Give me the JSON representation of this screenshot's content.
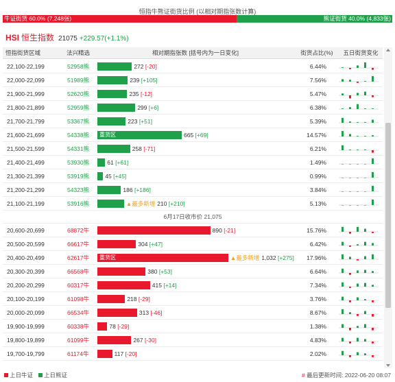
{
  "header": {
    "title": "恒指牛熊证街货比例 (以相对期指张数计算)",
    "bull_label": "牛证街货 60.0% (7,248张)",
    "bear_label": "熊证街货 40.0% (4,833张)",
    "bull_pct": 60.0,
    "bear_pct": 40.0
  },
  "index": {
    "code": "HSI",
    "name": "恒生指数",
    "value": "21075",
    "change": "+229.57(+1.1%)"
  },
  "table": {
    "headers": {
      "range": "恒指街货区域",
      "code": "法兴精选",
      "bar": "相对期指张数 [括号内为一日变化]",
      "share": "街货占比(%)",
      "five": "五日街货变化"
    },
    "bear_rows": [
      {
        "range": "22,100-22,199",
        "code": "52958熊",
        "value": 272,
        "value_text": "272",
        "change": "[-20]",
        "change_sign": "neg",
        "share": "6.44%",
        "tag": "",
        "newflag": "",
        "five": [
          0.1,
          -0.2,
          0.4,
          0.9,
          -0.3
        ]
      },
      {
        "range": "22,000-22,099",
        "code": "51989熊",
        "value": 239,
        "value_text": "239",
        "change": "[+105]",
        "change_sign": "pos",
        "share": "7.56%",
        "tag": "",
        "newflag": "",
        "five": [
          0.4,
          0.3,
          -0.2,
          0.1,
          0.9
        ]
      },
      {
        "range": "21,900-21,999",
        "code": "52620熊",
        "value": 235,
        "value_text": "235",
        "change": "[-12]",
        "change_sign": "neg",
        "share": "5.47%",
        "tag": "",
        "newflag": "",
        "five": [
          0.3,
          -0.5,
          0.4,
          0.6,
          -0.3
        ]
      },
      {
        "range": "21,800-21,899",
        "code": "52959熊",
        "value": 299,
        "value_text": "299",
        "change": "[+6]",
        "change_sign": "pos",
        "share": "6.38%",
        "tag": "",
        "newflag": "",
        "five": [
          0.1,
          0.3,
          0.8,
          0.1,
          0.1
        ]
      },
      {
        "range": "21,700-21,799",
        "code": "53367熊",
        "value": 223,
        "value_text": "223",
        "change": "[+51]",
        "change_sign": "pos",
        "share": "5.39%",
        "tag": "",
        "newflag": "",
        "five": [
          0.8,
          0.2,
          0.1,
          0.1,
          0.5
        ]
      },
      {
        "range": "21,600-21,699",
        "code": "54338熊",
        "value": 665,
        "value_text": "665",
        "change": "[+69]",
        "change_sign": "pos",
        "share": "14.57%",
        "tag": "重货区",
        "newflag": "",
        "five": [
          0.9,
          0.4,
          0.1,
          0.1,
          0.2
        ]
      },
      {
        "range": "21,500-21,599",
        "code": "54331熊",
        "value": 258,
        "value_text": "258",
        "change": "[-71]",
        "change_sign": "neg",
        "share": "6.21%",
        "tag": "",
        "newflag": "",
        "five": [
          0.8,
          0.1,
          0.1,
          0.1,
          -0.4
        ]
      },
      {
        "range": "21,400-21,499",
        "code": "53930熊",
        "value": 61,
        "value_text": "61",
        "change": "[+61]",
        "change_sign": "pos",
        "share": "1.49%",
        "tag": "",
        "newflag": "",
        "five": [
          0.0,
          0.0,
          0.0,
          0.0,
          0.9
        ]
      },
      {
        "range": "21,300-21,399",
        "code": "53919熊",
        "value": 45,
        "value_text": "45",
        "change": "[+45]",
        "change_sign": "pos",
        "share": "0.99%",
        "tag": "",
        "newflag": "",
        "five": [
          0.0,
          0.0,
          0.0,
          0.0,
          0.9
        ]
      },
      {
        "range": "21,200-21,299",
        "code": "54323熊",
        "value": 186,
        "value_text": "186",
        "change": "[+186]",
        "change_sign": "pos",
        "share": "3.84%",
        "tag": "",
        "newflag": "",
        "five": [
          0.0,
          0.0,
          0.0,
          0.0,
          0.9
        ]
      },
      {
        "range": "21,100-21,199",
        "code": "53916熊",
        "value": 210,
        "value_text": "210",
        "change": "[+210]",
        "change_sign": "pos",
        "share": "5.13%",
        "tag": "",
        "newflag": "▲最多新增",
        "five": [
          0.0,
          0.0,
          0.0,
          0.0,
          0.9
        ]
      }
    ],
    "close_label": "6月17日收市价 21,075",
    "bull_rows": [
      {
        "range": "20,600-20,699",
        "code": "68872牛",
        "value": 890,
        "value_text": "890",
        "change": "[-21]",
        "change_sign": "neg",
        "share": "15.76%",
        "tag": "",
        "newflag": "",
        "five": [
          0.8,
          -0.3,
          0.8,
          0.5,
          -0.2
        ]
      },
      {
        "range": "20,500-20,599",
        "code": "66617牛",
        "value": 304,
        "value_text": "304",
        "change": "[+47]",
        "change_sign": "pos",
        "share": "6.42%",
        "tag": "",
        "newflag": "",
        "five": [
          0.6,
          -0.2,
          0.2,
          0.6,
          0.4
        ]
      },
      {
        "range": "20,400-20,499",
        "code": "62617牛",
        "value": 1032,
        "value_text": "1,032",
        "change": "[+275]",
        "change_sign": "pos",
        "share": "17.96%",
        "tag": "重货区",
        "newflag": "▲最多新增",
        "five": [
          0.8,
          0.4,
          -0.2,
          0.5,
          0.8
        ]
      },
      {
        "range": "20,300-20,399",
        "code": "66568牛",
        "value": 380,
        "value_text": "380",
        "change": "[+53]",
        "change_sign": "pos",
        "share": "6.64%",
        "tag": "",
        "newflag": "",
        "five": [
          0.7,
          -0.3,
          0.4,
          0.5,
          0.3
        ]
      },
      {
        "range": "20,200-20,299",
        "code": "60317牛",
        "value": 415,
        "value_text": "415",
        "change": "[+14]",
        "change_sign": "pos",
        "share": "7.34%",
        "tag": "",
        "newflag": "",
        "five": [
          0.7,
          -0.2,
          0.5,
          0.6,
          0.3
        ]
      },
      {
        "range": "20,100-20,199",
        "code": "61098牛",
        "value": 218,
        "value_text": "218",
        "change": "[-29]",
        "change_sign": "neg",
        "share": "3.76%",
        "tag": "",
        "newflag": "",
        "five": [
          0.6,
          -0.3,
          0.5,
          0.2,
          -0.3
        ]
      },
      {
        "range": "20,000-20,099",
        "code": "66534牛",
        "value": 313,
        "value_text": "313",
        "change": "[-46]",
        "change_sign": "neg",
        "share": "8.67%",
        "tag": "",
        "newflag": "",
        "five": [
          0.8,
          0.3,
          -0.3,
          0.5,
          -0.4
        ]
      },
      {
        "range": "19,900-19,999",
        "code": "60338牛",
        "value": 78,
        "value_text": "78",
        "change": "[-29]",
        "change_sign": "neg",
        "share": "1.38%",
        "tag": "",
        "newflag": "",
        "five": [
          0.6,
          -0.4,
          0.3,
          0.6,
          -0.4
        ]
      },
      {
        "range": "19,800-19,899",
        "code": "61099牛",
        "value": 267,
        "value_text": "267",
        "change": "[-30]",
        "change_sign": "neg",
        "share": "4.83%",
        "tag": "",
        "newflag": "",
        "five": [
          0.6,
          -0.3,
          0.6,
          0.4,
          -0.3
        ]
      },
      {
        "range": "19,700-19,799",
        "code": "61174牛",
        "value": 117,
        "value_text": "117",
        "change": "[-20]",
        "change_sign": "neg",
        "share": "2.02%",
        "tag": "",
        "newflag": "",
        "five": [
          0.7,
          -0.3,
          0.5,
          0.3,
          -0.3
        ]
      }
    ]
  },
  "footer": {
    "legend_bull": "上日牛证",
    "legend_bear": "上日熊证",
    "updated_hash": "#",
    "updated": "最后更新时间: 2022-06-20 08:07"
  },
  "colors": {
    "bull": "#e8192c",
    "bear": "#20a04b",
    "newflag": "#f0a020"
  }
}
